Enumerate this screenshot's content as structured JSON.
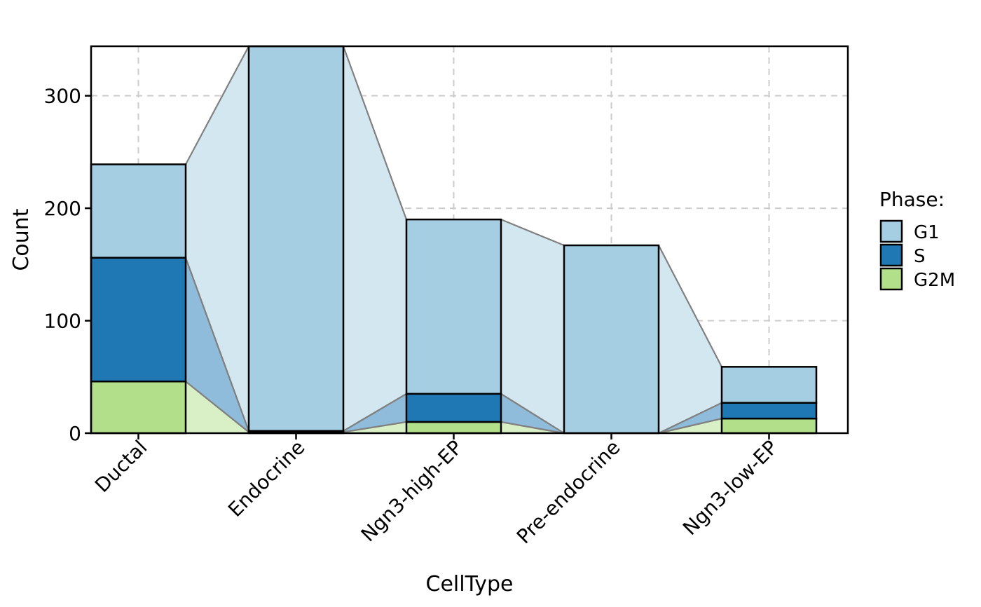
{
  "chart_data": {
    "type": "bar",
    "stacked": true,
    "flow_connectors": true,
    "title": "",
    "xlabel": "CellType",
    "ylabel": "Count",
    "categories": [
      "Ductal",
      "Endocrine",
      "Ngn3-high-EP",
      "Pre-endocrine",
      "Ngn3-low-EP"
    ],
    "series": [
      {
        "name": "G2M",
        "color": "#B2DF8A",
        "values": [
          46,
          1,
          10,
          0,
          13
        ]
      },
      {
        "name": "S",
        "color": "#1F78B4",
        "values": [
          110,
          1,
          25,
          0,
          14
        ]
      },
      {
        "name": "G1",
        "color": "#A6CEE3",
        "values": [
          83,
          342,
          155,
          167,
          32
        ]
      }
    ],
    "ylim": [
      0,
      344
    ],
    "yticks": [
      0,
      100,
      200,
      300
    ],
    "grid": "dashed",
    "legend": {
      "title": "Phase:",
      "position": "right",
      "entries": [
        "G1",
        "S",
        "G2M"
      ]
    }
  }
}
